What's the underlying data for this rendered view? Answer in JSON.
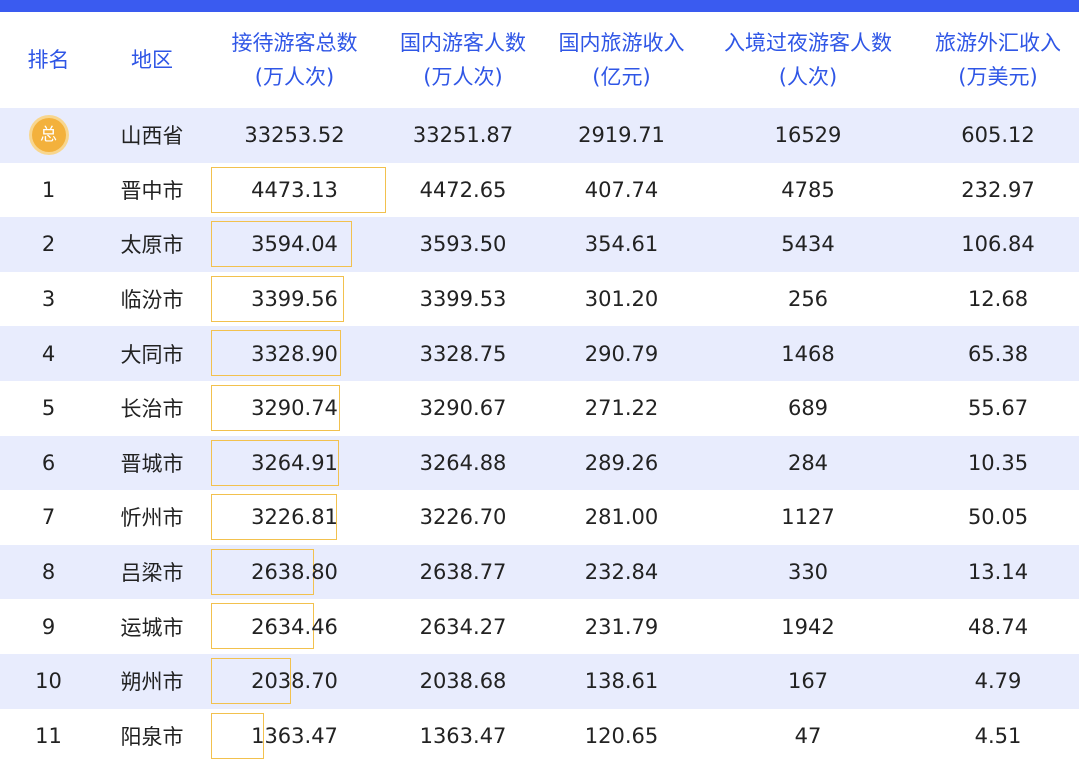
{
  "header": {
    "rank": "排名",
    "region": "地区",
    "total_line1": "接待游客总数",
    "total_line2": "(万人次)",
    "domestic_line1": "国内游客人数",
    "domestic_line2": "(万人次)",
    "domestic_income_line1": "国内旅游收入",
    "domestic_income_line2": "(亿元)",
    "inbound_line1": "入境过夜游客人数",
    "inbound_line2": "(人次)",
    "forex_line1": "旅游外汇收入",
    "forex_line2": "(万美元)"
  },
  "total_badge": "总",
  "chart_data": {
    "type": "table",
    "columns": [
      "排名",
      "地区",
      "接待游客总数(万人次)",
      "国内游客人数(万人次)",
      "国内旅游收入(亿元)",
      "入境过夜游客人数(人次)",
      "旅游外汇收入(万美元)"
    ],
    "rows": [
      {
        "rank": "总",
        "region": "山西省",
        "total": "33253.52",
        "domestic": "33251.87",
        "domestic_income": "2919.71",
        "inbound": "16529",
        "forex": "605.12"
      },
      {
        "rank": "1",
        "region": "晋中市",
        "total": "4473.13",
        "domestic": "4472.65",
        "domestic_income": "407.74",
        "inbound": "4785",
        "forex": "232.97"
      },
      {
        "rank": "2",
        "region": "太原市",
        "total": "3594.04",
        "domestic": "3593.50",
        "domestic_income": "354.61",
        "inbound": "5434",
        "forex": "106.84"
      },
      {
        "rank": "3",
        "region": "临汾市",
        "total": "3399.56",
        "domestic": "3399.53",
        "domestic_income": "301.20",
        "inbound": "256",
        "forex": "12.68"
      },
      {
        "rank": "4",
        "region": "大同市",
        "total": "3328.90",
        "domestic": "3328.75",
        "domestic_income": "290.79",
        "inbound": "1468",
        "forex": "65.38"
      },
      {
        "rank": "5",
        "region": "长治市",
        "total": "3290.74",
        "domestic": "3290.67",
        "domestic_income": "271.22",
        "inbound": "689",
        "forex": "55.67"
      },
      {
        "rank": "6",
        "region": "晋城市",
        "total": "3264.91",
        "domestic": "3264.88",
        "domestic_income": "289.26",
        "inbound": "284",
        "forex": "10.35"
      },
      {
        "rank": "7",
        "region": "忻州市",
        "total": "3226.81",
        "domestic": "3226.70",
        "domestic_income": "281.00",
        "inbound": "1127",
        "forex": "50.05"
      },
      {
        "rank": "8",
        "region": "吕梁市",
        "total": "2638.80",
        "domestic": "2638.77",
        "domestic_income": "232.84",
        "inbound": "330",
        "forex": "13.14"
      },
      {
        "rank": "9",
        "region": "运城市",
        "total": "2634.46",
        "domestic": "2634.27",
        "domestic_income": "231.79",
        "inbound": "1942",
        "forex": "48.74"
      },
      {
        "rank": "10",
        "region": "朔州市",
        "total": "2038.70",
        "domestic": "2038.68",
        "domestic_income": "138.61",
        "inbound": "167",
        "forex": "4.79"
      },
      {
        "rank": "11",
        "region": "阳泉市",
        "total": "1363.47",
        "domestic": "1363.47",
        "domestic_income": "120.65",
        "inbound": "47",
        "forex": "4.51"
      }
    ],
    "bar_column": "total",
    "bar_color": "#f2c14e",
    "header_color": "#2f56e6",
    "stripe_color": "#e8ecfd"
  }
}
